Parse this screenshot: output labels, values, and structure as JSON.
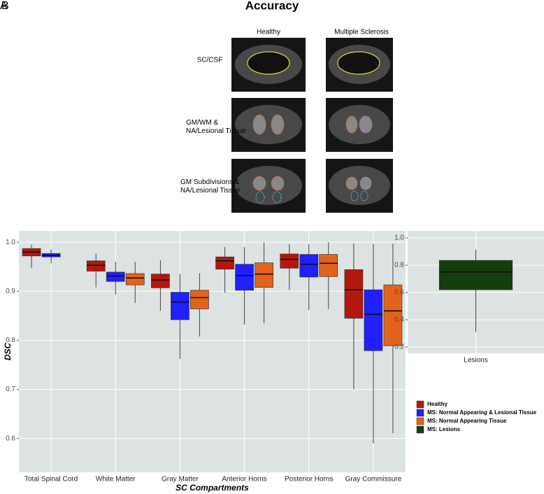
{
  "figure": {
    "panel_labels": [
      "A",
      "B"
    ],
    "title": "Accuracy",
    "columns": [
      "Healthy",
      "Multiple Sclerosis"
    ],
    "rows": [
      "SC/CSF",
      "GM/WM &\nNA/Lesional Tissue",
      "GM Subdivisions &\nNA/Lesional Tissue"
    ]
  },
  "chart_data": [
    {
      "type": "box",
      "y_label": "DSC",
      "x_label": "SC Compartments",
      "categories": [
        "Total Spinal Cord",
        "White Matter",
        "Gray Matter",
        "Anterior Horns",
        "Posterior Horns",
        "Gray Commissure"
      ],
      "series": [
        {
          "name": "Healthy",
          "color": "#b5170f",
          "values": [
            [
              0.948,
              0.972,
              0.98,
              0.987,
              0.995
            ],
            [
              0.908,
              0.941,
              0.953,
              0.962,
              0.977
            ],
            [
              0.86,
              0.907,
              0.923,
              0.935,
              0.963
            ],
            [
              0.897,
              0.945,
              0.962,
              0.97,
              0.99
            ],
            [
              0.903,
              0.947,
              0.965,
              0.976,
              0.996
            ],
            [
              0.7,
              0.845,
              0.903,
              0.944,
              0.997
            ]
          ]
        },
        {
          "name": "MS: Normal Appearing & Lesional Tissue",
          "color": "#1f1fff",
          "values": [
            [
              0.957,
              0.97,
              0.973,
              0.977,
              0.985
            ],
            [
              0.893,
              0.92,
              0.931,
              0.939,
              0.96
            ],
            [
              0.762,
              0.842,
              0.878,
              0.898,
              0.935
            ],
            [
              0.832,
              0.902,
              0.932,
              0.955,
              0.99
            ],
            [
              0.862,
              0.929,
              0.955,
              0.975,
              0.996
            ],
            [
              0.59,
              0.779,
              0.853,
              0.903,
              0.997
            ]
          ]
        },
        {
          "name": "MS: Normal Appearing Tissue",
          "color": "#e2641c",
          "values": [
            null,
            [
              0.876,
              0.913,
              0.927,
              0.936,
              0.96
            ],
            [
              0.808,
              0.864,
              0.887,
              0.902,
              0.937
            ],
            [
              0.835,
              0.908,
              0.935,
              0.958,
              1.0
            ],
            [
              0.864,
              0.93,
              0.957,
              0.975,
              1.0
            ],
            [
              0.611,
              0.789,
              0.86,
              0.913,
              0.997
            ]
          ]
        }
      ],
      "ylim": [
        0.531,
        1.023
      ],
      "yticks": [
        {
          "value": 0.6,
          "label": "0.6"
        },
        {
          "value": 0.7,
          "label": "0.7"
        },
        {
          "value": 0.8,
          "label": "0.8"
        },
        {
          "value": 0.9,
          "label": "0.9"
        },
        {
          "value": 1.0,
          "label": "1.0"
        }
      ],
      "grid": true
    },
    {
      "type": "box",
      "categories": [
        "Lesions"
      ],
      "series": [
        {
          "name": "MS: Lesions",
          "color": "#143d10",
          "values": [
            [
              0.31,
              0.62,
              0.75,
              0.835,
              0.915
            ]
          ]
        }
      ],
      "ylim": [
        0.154,
        1.051
      ],
      "yticks": [
        0.2,
        0.4,
        0.6,
        0.8,
        {
          "value": 1.0,
          "label": "1.0"
        }
      ],
      "grid": true
    }
  ]
}
